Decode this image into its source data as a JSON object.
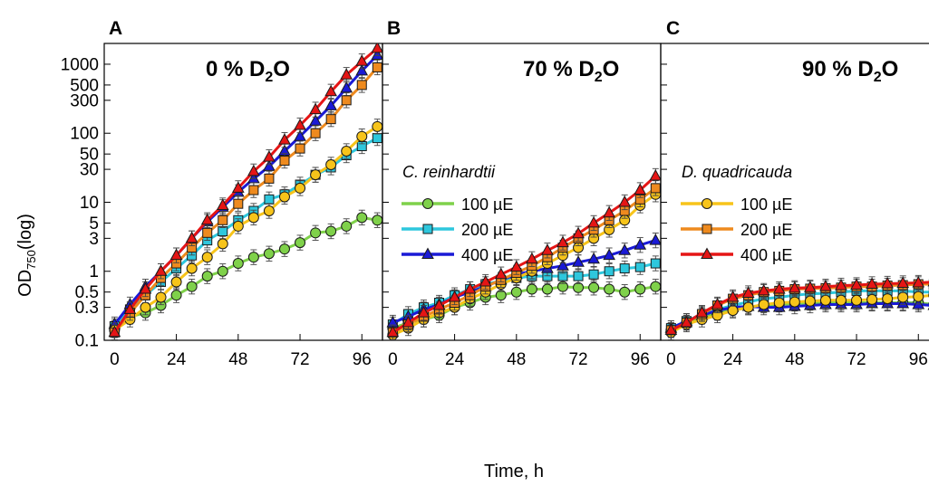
{
  "figure": {
    "xlabel": "Time, h",
    "ylabel_main": "OD",
    "ylabel_sub": "750",
    "ylabel_suffix": "(log)"
  },
  "legend_left": {
    "title": "C. reinhardtii",
    "entries": [
      {
        "label": "100 µE",
        "color": "#7fd14a",
        "marker": "circle"
      },
      {
        "label": "200 µE",
        "color": "#2ec7dd",
        "marker": "square"
      },
      {
        "label": "400 µE",
        "color": "#1a1ad6",
        "marker": "triangle"
      }
    ]
  },
  "legend_right": {
    "title": "D. quadricauda",
    "entries": [
      {
        "label": "100 µE",
        "color": "#f7c41a",
        "marker": "circle"
      },
      {
        "label": "200 µE",
        "color": "#ee8a1e",
        "marker": "square"
      },
      {
        "label": "400 µE",
        "color": "#e51515",
        "marker": "triangle"
      }
    ]
  },
  "chart_data": [
    {
      "type": "line",
      "panel": "A",
      "title_main": "0 % D",
      "title_sub": "2",
      "title_end": "O",
      "xlabel": "Time, h",
      "ylabel": "OD750(log)",
      "xlim": [
        -4,
        104
      ],
      "ylim": [
        0.1,
        2000
      ],
      "yscale": "log",
      "xticks": [
        0,
        24,
        48,
        72,
        96
      ],
      "yticks": [
        0.1,
        0.3,
        0.5,
        1,
        3,
        5,
        10,
        30,
        50,
        100,
        300,
        500,
        1000
      ],
      "ytick_labels": [
        "0.1",
        "0.3",
        "0.5",
        "1",
        "3",
        "5",
        "10",
        "30",
        "50",
        "100",
        "300",
        "500",
        "1000"
      ],
      "x": [
        0,
        6,
        12,
        18,
        24,
        30,
        36,
        42,
        48,
        54,
        60,
        66,
        72,
        78,
        84,
        90,
        96,
        102
      ],
      "series": [
        {
          "name": "C. reinhardtii 100 µE",
          "color": "#7fd14a",
          "marker": "circle",
          "values": [
            0.15,
            0.22,
            0.25,
            0.32,
            0.45,
            0.6,
            0.85,
            1.0,
            1.3,
            1.6,
            1.8,
            2.1,
            2.6,
            3.6,
            3.8,
            4.5,
            6.0,
            5.5
          ]
        },
        {
          "name": "C. reinhardtii 200 µE",
          "color": "#2ec7dd",
          "marker": "square",
          "values": [
            0.16,
            0.28,
            0.45,
            0.7,
            1.1,
            1.7,
            2.8,
            3.8,
            5.5,
            7.5,
            11,
            13,
            18,
            25,
            32,
            48,
            65,
            85
          ]
        },
        {
          "name": "C. reinhardtii 400 µE",
          "color": "#1a1ad6",
          "marker": "triangle",
          "values": [
            0.17,
            0.33,
            0.6,
            1.0,
            1.7,
            3.0,
            5.2,
            8.5,
            14,
            22,
            33,
            55,
            90,
            150,
            250,
            450,
            800,
            1350
          ]
        },
        {
          "name": "D. quadricauda 100 µE",
          "color": "#f7c41a",
          "marker": "circle",
          "values": [
            0.14,
            0.2,
            0.3,
            0.42,
            0.7,
            1.1,
            1.6,
            2.5,
            4.5,
            6.0,
            7.5,
            12,
            16,
            25,
            35,
            55,
            90,
            125
          ]
        },
        {
          "name": "D. quadricauda 200 µE",
          "color": "#ee8a1e",
          "marker": "square",
          "values": [
            0.13,
            0.25,
            0.45,
            0.8,
            1.3,
            2.2,
            3.6,
            5.5,
            9.5,
            15,
            22,
            40,
            60,
            100,
            160,
            300,
            500,
            900
          ]
        },
        {
          "name": "D. quadricauda 400 µE",
          "color": "#e51515",
          "marker": "triangle",
          "values": [
            0.13,
            0.28,
            0.55,
            1.0,
            1.7,
            3.0,
            5.5,
            9.0,
            16,
            28,
            45,
            80,
            130,
            220,
            400,
            700,
            1100,
            1700
          ]
        }
      ]
    },
    {
      "type": "line",
      "panel": "B",
      "title_main": "70 % D",
      "title_sub": "2",
      "title_end": "O",
      "xlim": [
        -4,
        104
      ],
      "ylim": [
        0.1,
        2000
      ],
      "yscale": "log",
      "xticks": [
        0,
        24,
        48,
        72,
        96
      ],
      "x": [
        0,
        6,
        12,
        18,
        24,
        30,
        36,
        42,
        48,
        54,
        60,
        66,
        72,
        78,
        84,
        90,
        96,
        102
      ],
      "series": [
        {
          "name": "C. reinhardtii 100 µE",
          "color": "#7fd14a",
          "marker": "circle",
          "values": [
            0.15,
            0.18,
            0.2,
            0.23,
            0.3,
            0.35,
            0.42,
            0.45,
            0.5,
            0.55,
            0.55,
            0.6,
            0.58,
            0.58,
            0.55,
            0.5,
            0.55,
            0.6
          ]
        },
        {
          "name": "C. reinhardtii 200 µE",
          "color": "#2ec7dd",
          "marker": "square",
          "values": [
            0.17,
            0.24,
            0.3,
            0.35,
            0.45,
            0.55,
            0.65,
            0.72,
            0.8,
            0.85,
            0.85,
            0.85,
            0.85,
            0.9,
            1.0,
            1.1,
            1.15,
            1.3
          ]
        },
        {
          "name": "C. reinhardtii 400 µE",
          "color": "#1a1ad6",
          "marker": "triangle",
          "values": [
            0.18,
            0.22,
            0.28,
            0.33,
            0.42,
            0.5,
            0.6,
            0.75,
            0.9,
            1.0,
            1.1,
            1.2,
            1.35,
            1.5,
            1.7,
            2.0,
            2.4,
            2.8
          ]
        },
        {
          "name": "D. quadricauda 100 µE",
          "color": "#f7c41a",
          "marker": "circle",
          "values": [
            0.12,
            0.15,
            0.2,
            0.25,
            0.3,
            0.4,
            0.5,
            0.65,
            0.8,
            1.0,
            1.3,
            1.7,
            2.2,
            3.0,
            4.0,
            5.5,
            9.0,
            13
          ]
        },
        {
          "name": "D. quadricauda 200 µE",
          "color": "#ee8a1e",
          "marker": "square",
          "values": [
            0.13,
            0.17,
            0.22,
            0.28,
            0.35,
            0.45,
            0.6,
            0.75,
            0.95,
            1.2,
            1.6,
            2.2,
            3.0,
            4.0,
            5.5,
            7.5,
            11,
            16
          ]
        },
        {
          "name": "D. quadricauda 400 µE",
          "color": "#e51515",
          "marker": "triangle",
          "values": [
            0.13,
            0.18,
            0.25,
            0.32,
            0.42,
            0.55,
            0.7,
            0.9,
            1.15,
            1.5,
            2.0,
            2.6,
            3.5,
            5.0,
            7.0,
            10,
            15,
            24
          ]
        }
      ]
    },
    {
      "type": "line",
      "panel": "C",
      "title_main": "90 % D",
      "title_sub": "2",
      "title_end": "O",
      "xlim": [
        -4,
        104
      ],
      "ylim": [
        0.1,
        2000
      ],
      "yscale": "log",
      "xticks": [
        0,
        24,
        48,
        72,
        96
      ],
      "x": [
        0,
        6,
        12,
        18,
        24,
        30,
        36,
        42,
        48,
        54,
        60,
        66,
        72,
        78,
        84,
        90,
        96,
        102
      ],
      "series": [
        {
          "name": "C. reinhardtii 100 µE",
          "color": "#7fd14a",
          "marker": "circle",
          "values": [
            0.14,
            0.18,
            0.22,
            0.25,
            0.28,
            0.3,
            0.32,
            0.33,
            0.34,
            0.35,
            0.35,
            0.35,
            0.35,
            0.35,
            0.35,
            0.35,
            0.35,
            0.33
          ]
        },
        {
          "name": "C. reinhardtii 200 µE",
          "color": "#2ec7dd",
          "marker": "square",
          "values": [
            0.15,
            0.19,
            0.24,
            0.28,
            0.32,
            0.36,
            0.4,
            0.42,
            0.45,
            0.47,
            0.48,
            0.5,
            0.52,
            0.52,
            0.52,
            0.52,
            0.5,
            0.5
          ]
        },
        {
          "name": "C. reinhardtii 400 µE",
          "color": "#1a1ad6",
          "marker": "triangle",
          "values": [
            0.15,
            0.19,
            0.23,
            0.27,
            0.3,
            0.31,
            0.3,
            0.3,
            0.31,
            0.32,
            0.33,
            0.33,
            0.33,
            0.34,
            0.34,
            0.34,
            0.33,
            0.32
          ]
        },
        {
          "name": "D. quadricauda 100 µE",
          "color": "#f7c41a",
          "marker": "circle",
          "values": [
            0.13,
            0.17,
            0.2,
            0.23,
            0.27,
            0.3,
            0.33,
            0.35,
            0.36,
            0.37,
            0.38,
            0.38,
            0.38,
            0.39,
            0.4,
            0.42,
            0.43,
            0.45
          ]
        },
        {
          "name": "D. quadricauda 200 µE",
          "color": "#ee8a1e",
          "marker": "square",
          "values": [
            0.14,
            0.18,
            0.24,
            0.32,
            0.4,
            0.45,
            0.5,
            0.52,
            0.55,
            0.56,
            0.57,
            0.58,
            0.6,
            0.6,
            0.62,
            0.63,
            0.65,
            0.65
          ]
        },
        {
          "name": "D. quadricauda 400 µE",
          "color": "#e51515",
          "marker": "triangle",
          "values": [
            0.14,
            0.18,
            0.25,
            0.33,
            0.42,
            0.48,
            0.52,
            0.55,
            0.57,
            0.58,
            0.6,
            0.62,
            0.63,
            0.65,
            0.66,
            0.67,
            0.68,
            0.7
          ]
        }
      ]
    }
  ]
}
